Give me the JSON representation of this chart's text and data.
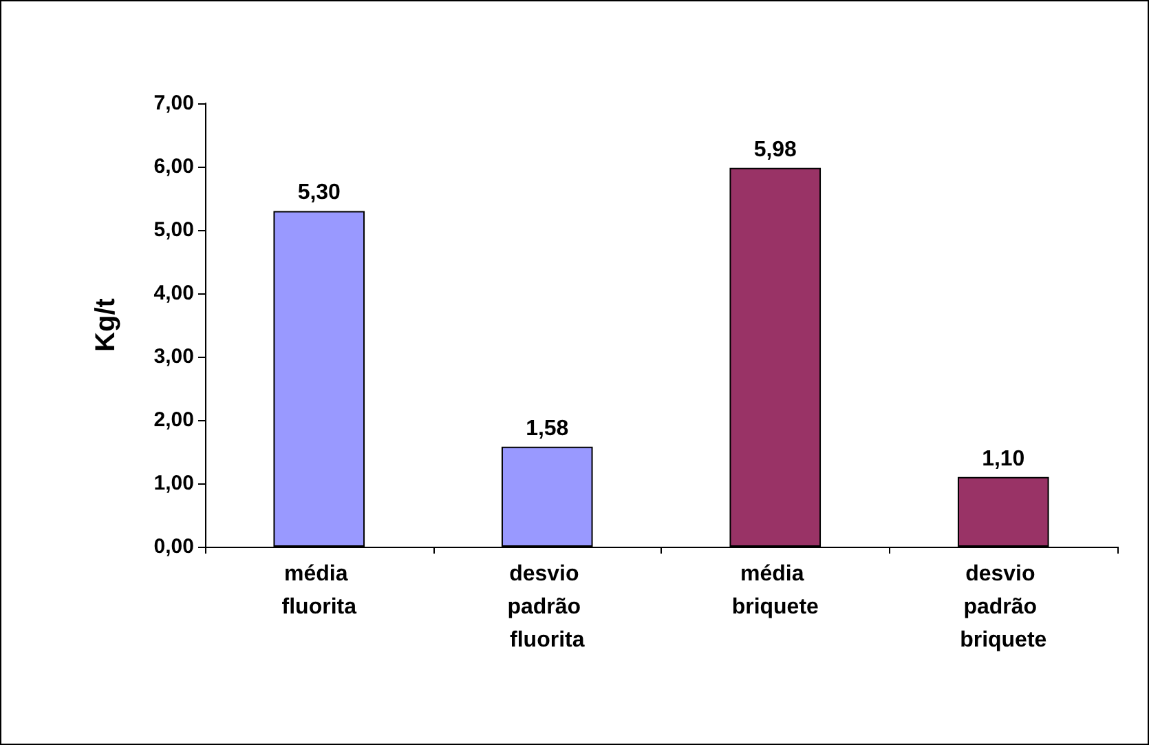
{
  "chart_data": {
    "type": "bar",
    "ylabel": "Kg/t",
    "categories": [
      "média fluorita",
      "desvio padrão fluorita",
      "média briquete",
      "desvio padrão briquete"
    ],
    "values": [
      5.3,
      1.58,
      5.98,
      1.1
    ],
    "colors": [
      "#9999ff",
      "#9999ff",
      "#993366",
      "#993366"
    ],
    "value_labels": [
      "5,30",
      "1,58",
      "5,98",
      "1,10"
    ],
    "ylim": [
      0,
      7
    ],
    "yticks": [
      {
        "value": 0,
        "label": "0,00"
      },
      {
        "value": 1,
        "label": "1,00"
      },
      {
        "value": 2,
        "label": "2,00"
      },
      {
        "value": 3,
        "label": "3,00"
      },
      {
        "value": 4,
        "label": "4,00"
      },
      {
        "value": 5,
        "label": "5,00"
      },
      {
        "value": 6,
        "label": "6,00"
      },
      {
        "value": 7,
        "label": "7,00"
      }
    ],
    "grid": false
  }
}
